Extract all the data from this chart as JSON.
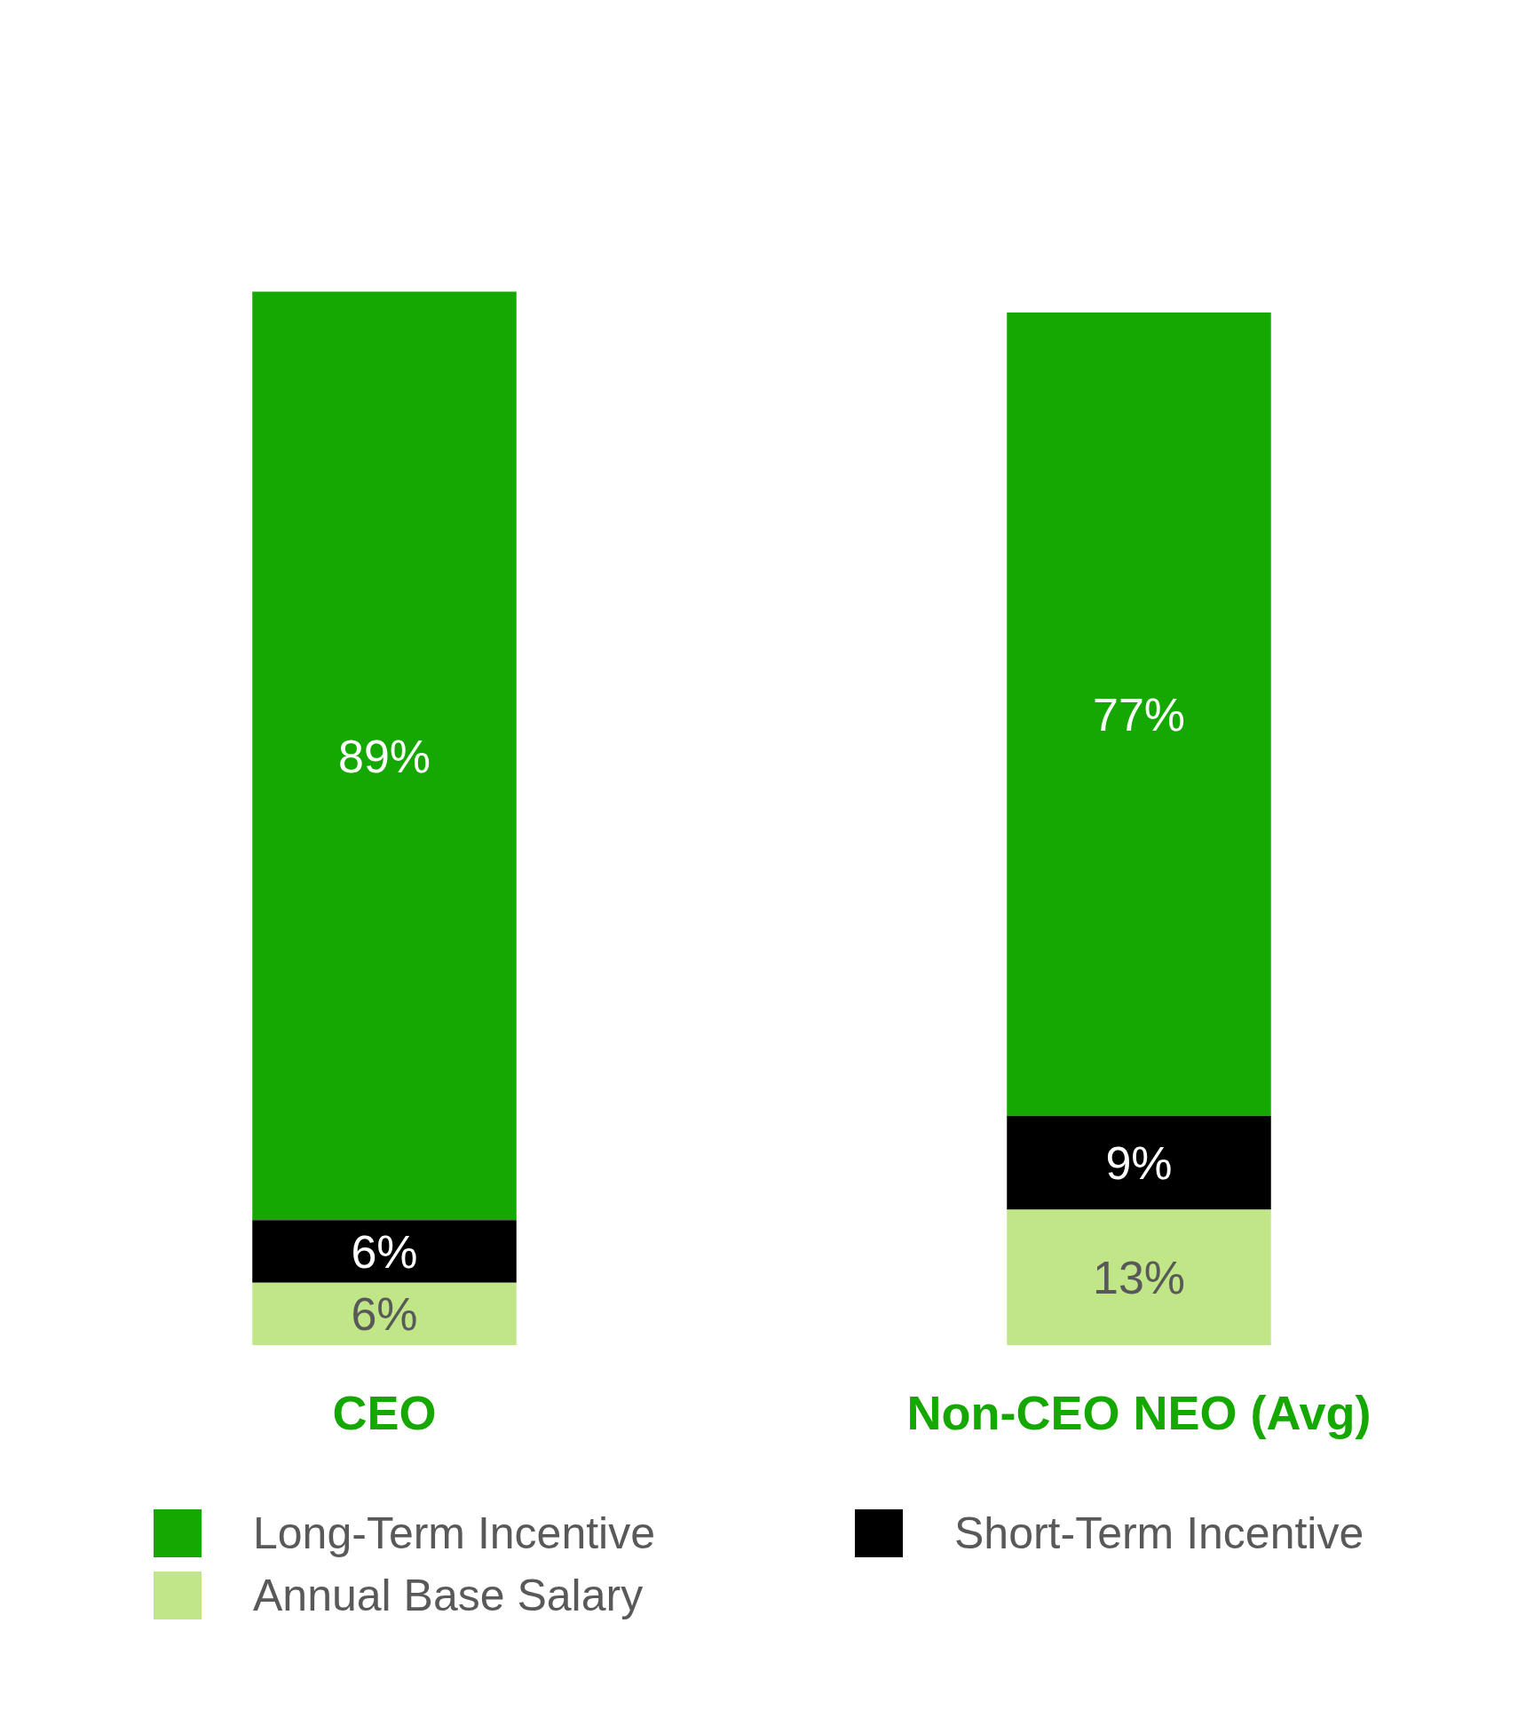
{
  "chart_data": {
    "type": "bar",
    "stacked": true,
    "categories": [
      "CEO",
      "Non-CEO NEO (Avg)"
    ],
    "series": [
      {
        "name": "Annual Base Salary",
        "color": "#c0e688",
        "values": [
          6,
          13
        ],
        "value_labels": [
          "6%",
          "13%"
        ]
      },
      {
        "name": "Short-Term Incentive",
        "color": "#000000",
        "values": [
          6,
          9
        ],
        "value_labels": [
          "6%",
          "9%"
        ]
      },
      {
        "name": "Long-Term Incentive",
        "color": "#14a800",
        "values": [
          89,
          77
        ],
        "value_labels": [
          "89%",
          "77%"
        ]
      }
    ],
    "legend": "bottom"
  }
}
